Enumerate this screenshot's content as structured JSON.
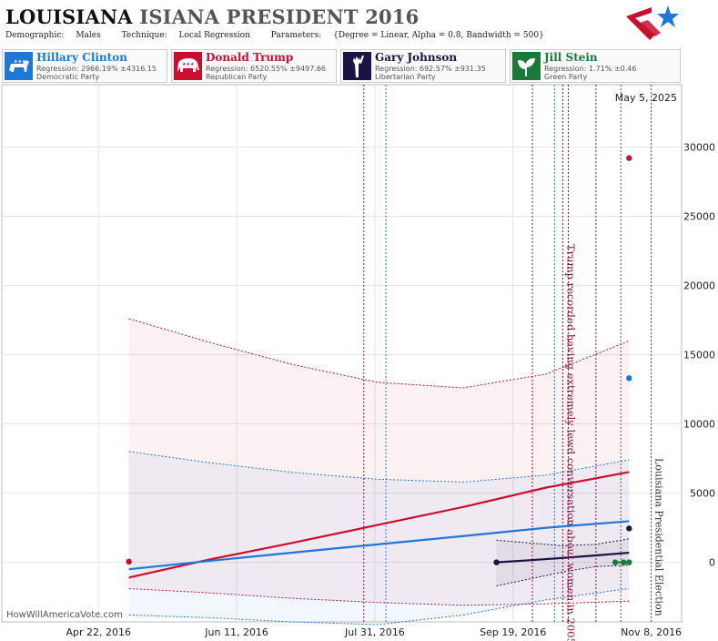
{
  "header": {
    "title_main": "LOUISIANA",
    "title_rest": "ISIANA PRESIDENT 2016",
    "demographic_label": "Demographic:",
    "demographic_value": "Males",
    "technique_label": "Technique:",
    "technique_value": "Local Regression",
    "parameters_label": "Parameters:",
    "parameters_value": "{Degree = Linear, Alpha = 0.8, Bandwidth = 500}"
  },
  "candidates": [
    {
      "name": "Hillary Clinton",
      "regression": "Regression: 2966.19% ±4316.15",
      "party": "Democratic Party",
      "color": "#1f78d8",
      "icon": "donkey-icon"
    },
    {
      "name": "Donald Trump",
      "regression": "Regression: 6520.55% ±9497.66",
      "party": "Republican Party",
      "color": "#c8102e",
      "icon": "elephant-icon"
    },
    {
      "name": "Gary Johnson",
      "regression": "Regression: 692.57% ±931.35",
      "party": "Libertarian Party",
      "color": "#1a1446",
      "icon": "statue-of-liberty-icon"
    },
    {
      "name": "Jill Stein",
      "regression": "Regression: 1.71% ±0.46",
      "party": "Green Party",
      "color": "#1a7a3a",
      "icon": "leaf-icon"
    }
  ],
  "watermark": "HowWillAmericaVote.com",
  "chart_data": {
    "type": "line",
    "date_label": "May 5, 2025",
    "x_domain": [
      "2016-03-18",
      "2016-11-19"
    ],
    "ylim": [
      -4300,
      34500
    ],
    "y_ticks": [
      0,
      5000,
      10000,
      15000,
      20000,
      25000,
      30000
    ],
    "y_tick_labels": [
      "0",
      "5000",
      "10000",
      "15000",
      "20000",
      "25000",
      "30000"
    ],
    "x_ticks": [
      "2016-04-22",
      "2016-06-11",
      "2016-07-31",
      "2016-09-19",
      "2016-11-08"
    ],
    "x_tick_labels": [
      "Apr 22, 2016",
      "Jun 11, 2016",
      "Jul 31, 2016",
      "Sep 19, 2016",
      "Nov 8, 2016"
    ],
    "grid": true,
    "series": [
      {
        "name": "Donald Trump",
        "color": "#c8102e",
        "x": [
          "2016-05-03",
          "2016-06-01",
          "2016-07-01",
          "2016-08-01",
          "2016-09-01",
          "2016-10-01",
          "2016-10-31"
        ],
        "y": [
          -1100,
          200,
          1400,
          2700,
          4000,
          5400,
          6520
        ],
        "upper": [
          17600,
          15900,
          14300,
          13000,
          12600,
          13600,
          16000
        ],
        "lower": [
          -1900,
          -2200,
          -2600,
          -2900,
          -3100,
          -3000,
          -2800
        ],
        "points": [
          {
            "x": "2016-05-03",
            "y": 50
          },
          {
            "x": "2016-10-31",
            "y": 29200
          }
        ]
      },
      {
        "name": "Hillary Clinton",
        "color": "#1f78d8",
        "x": [
          "2016-05-03",
          "2016-06-01",
          "2016-07-01",
          "2016-08-01",
          "2016-09-01",
          "2016-10-01",
          "2016-10-31"
        ],
        "y": [
          -500,
          100,
          700,
          1300,
          1900,
          2500,
          2970
        ],
        "upper": [
          8000,
          7200,
          6500,
          6000,
          5800,
          6300,
          7400
        ],
        "lower": [
          -3800,
          -4000,
          -4300,
          -4500,
          -3800,
          -2700,
          -1900
        ],
        "points": [
          {
            "x": "2016-10-31",
            "y": 13300
          }
        ]
      },
      {
        "name": "Gary Johnson",
        "color": "#1a1446",
        "x": [
          "2016-09-13",
          "2016-09-25",
          "2016-10-07",
          "2016-10-19",
          "2016-10-31"
        ],
        "y": [
          0,
          150,
          320,
          500,
          693
        ],
        "upper": [
          1600,
          1400,
          1200,
          1300,
          1700
        ],
        "lower": [
          -1700,
          -1200,
          -700,
          -300,
          -200
        ],
        "points": [
          {
            "x": "2016-09-13",
            "y": 0
          },
          {
            "x": "2016-10-31",
            "y": 2450
          }
        ]
      },
      {
        "name": "Jill Stein",
        "color": "#1a7a3a",
        "x": [
          "2016-10-26",
          "2016-10-31"
        ],
        "y": [
          2,
          2
        ],
        "points": [
          {
            "x": "2016-10-26",
            "y": 0
          },
          {
            "x": "2016-10-29",
            "y": 0
          },
          {
            "x": "2016-10-31",
            "y": 0
          }
        ]
      }
    ],
    "events": [
      {
        "date": "2016-07-27",
        "color": "#8a1040"
      },
      {
        "date": "2016-08-04",
        "color": "#1f78d8"
      },
      {
        "date": "2016-09-26",
        "color": "#8a1040"
      },
      {
        "date": "2016-10-04",
        "color": "#1f78d8"
      },
      {
        "date": "2016-10-07",
        "color": "#8a1040"
      },
      {
        "date": "2016-10-09",
        "color": "#8a1040"
      },
      {
        "date": "2016-10-19",
        "color": "#8a1040"
      },
      {
        "date": "2016-10-28",
        "color": "#555555"
      },
      {
        "date": "2016-11-08",
        "color": "#555555"
      }
    ],
    "annotations": [
      {
        "text": "Trump recorded having extremely lewd conversation about women in 2005",
        "date": "2016-10-07",
        "color": "#8a1040"
      },
      {
        "text": "Louisiana Presidential Election",
        "date": "2016-11-08",
        "color": "#333333"
      }
    ]
  }
}
